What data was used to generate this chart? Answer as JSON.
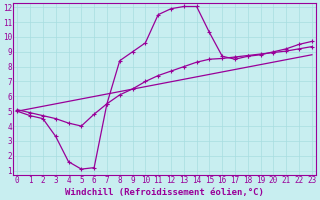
{
  "xlabel": "Windchill (Refroidissement éolien,°C)",
  "x_min": 0,
  "x_max": 23,
  "y_min": 1,
  "y_max": 12,
  "background_color": "#c8eef0",
  "line_color": "#990099",
  "curve1_x": [
    0,
    1,
    2,
    3,
    4,
    5,
    6,
    7,
    8,
    9,
    10,
    11,
    12,
    13,
    14,
    15,
    16,
    17,
    18,
    19,
    20,
    21,
    22,
    23
  ],
  "curve1_y": [
    5.0,
    4.7,
    4.5,
    3.3,
    1.6,
    1.1,
    1.2,
    5.5,
    8.4,
    9.0,
    9.6,
    11.5,
    11.9,
    12.05,
    12.05,
    10.3,
    8.7,
    8.5,
    8.7,
    8.8,
    9.0,
    9.2,
    9.5,
    9.7
  ],
  "curve2_x": [
    0,
    1,
    2,
    3,
    4,
    5,
    6,
    7,
    8,
    9,
    10,
    11,
    12,
    13,
    14,
    15,
    16,
    17,
    18,
    19,
    20,
    21,
    22,
    23
  ],
  "curve2_y": [
    5.1,
    4.9,
    4.7,
    4.5,
    4.2,
    4.0,
    4.8,
    5.5,
    6.1,
    6.5,
    7.0,
    7.4,
    7.7,
    8.0,
    8.3,
    8.5,
    8.55,
    8.65,
    8.75,
    8.85,
    8.95,
    9.05,
    9.2,
    9.35
  ],
  "trend_x": [
    0,
    23
  ],
  "trend_y": [
    5.0,
    8.8
  ],
  "tick_fontsize": 5.5,
  "label_fontsize": 6.5,
  "grid_color": "#a8dde0",
  "marker_size": 3,
  "linewidth": 0.9
}
